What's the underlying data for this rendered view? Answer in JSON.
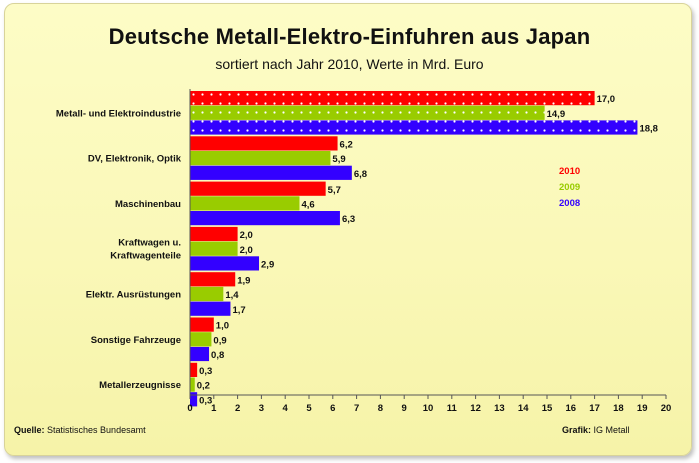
{
  "chart_data": {
    "type": "bar",
    "orientation": "horizontal",
    "title": "Deutsche Metall-Elektro-Einfuhren aus Japan",
    "subtitle": "sortiert nach Jahr 2010, Werte in Mrd. Euro",
    "categories": [
      [
        "Metall- und Elektroindustrie"
      ],
      [
        "DV, Elektronik, Optik"
      ],
      [
        "Maschinenbau"
      ],
      [
        "Kraftwagen u.",
        "Kraftwagenteile"
      ],
      [
        "Elektr. Ausrüstungen"
      ],
      [
        "Sonstige Fahrzeuge"
      ],
      [
        "Metallerzeugnisse"
      ]
    ],
    "series": [
      {
        "name": "2010",
        "color": "#ff0000",
        "values": [
          17.0,
          6.2,
          5.7,
          2.0,
          1.9,
          1.0,
          0.3
        ],
        "labels": [
          "17,0",
          "6,2",
          "5,7",
          "2,0",
          "1,9",
          "1,0",
          "0,3"
        ]
      },
      {
        "name": "2009",
        "color": "#99cc00",
        "values": [
          14.9,
          5.9,
          4.6,
          2.0,
          1.4,
          0.9,
          0.2
        ],
        "labels": [
          "14,9",
          "5,9",
          "4,6",
          "2,0",
          "1,4",
          "0,9",
          "0,2"
        ]
      },
      {
        "name": "2008",
        "color": "#3300ff",
        "values": [
          18.8,
          6.8,
          6.3,
          2.9,
          1.7,
          0.8,
          0.3
        ],
        "labels": [
          "18,8",
          "6,8",
          "6,3",
          "2,9",
          "1,7",
          "0,8",
          "0,3"
        ]
      }
    ],
    "xlim": [
      0,
      20
    ],
    "xticks": [
      0,
      1,
      2,
      3,
      4,
      5,
      6,
      7,
      8,
      9,
      10,
      11,
      12,
      13,
      14,
      15,
      16,
      17,
      18,
      19,
      20
    ],
    "legend": {
      "placement": "right",
      "entries": [
        "2010",
        "2009",
        "2008"
      ]
    },
    "grid": false,
    "highlighted_category": "Metall- und Elektroindustrie"
  },
  "footer": {
    "source_label": "Quelle:",
    "source_text": "Statistisches Bundesamt",
    "credit_label": "Grafik:",
    "credit_text": "IG Metall"
  }
}
